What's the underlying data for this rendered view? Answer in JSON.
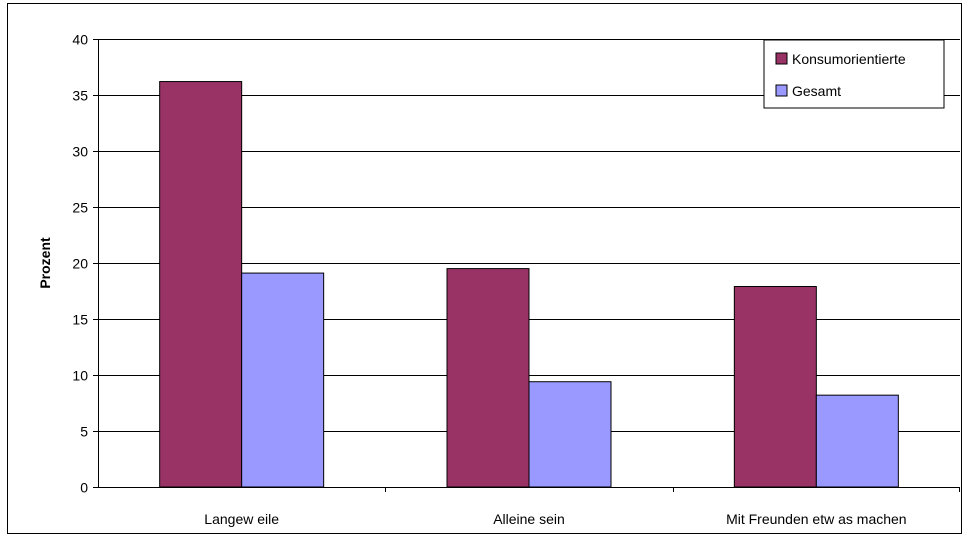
{
  "chart_data": {
    "type": "bar",
    "title": "",
    "xlabel": "",
    "ylabel": "Prozent",
    "ylim": [
      0,
      40
    ],
    "yticks": [
      0,
      5,
      10,
      15,
      20,
      25,
      30,
      35,
      40
    ],
    "categories": [
      "Langew eile",
      "Alleine sein",
      "Mit Freunden etw as machen"
    ],
    "series": [
      {
        "name": "Konsumorientierte",
        "color": "#993366",
        "values": [
          36.2,
          19.5,
          17.9
        ]
      },
      {
        "name": "Gesamt",
        "color": "#9999FF",
        "values": [
          19.1,
          9.4,
          8.2
        ]
      }
    ],
    "grid": true,
    "legend": "top-right"
  }
}
